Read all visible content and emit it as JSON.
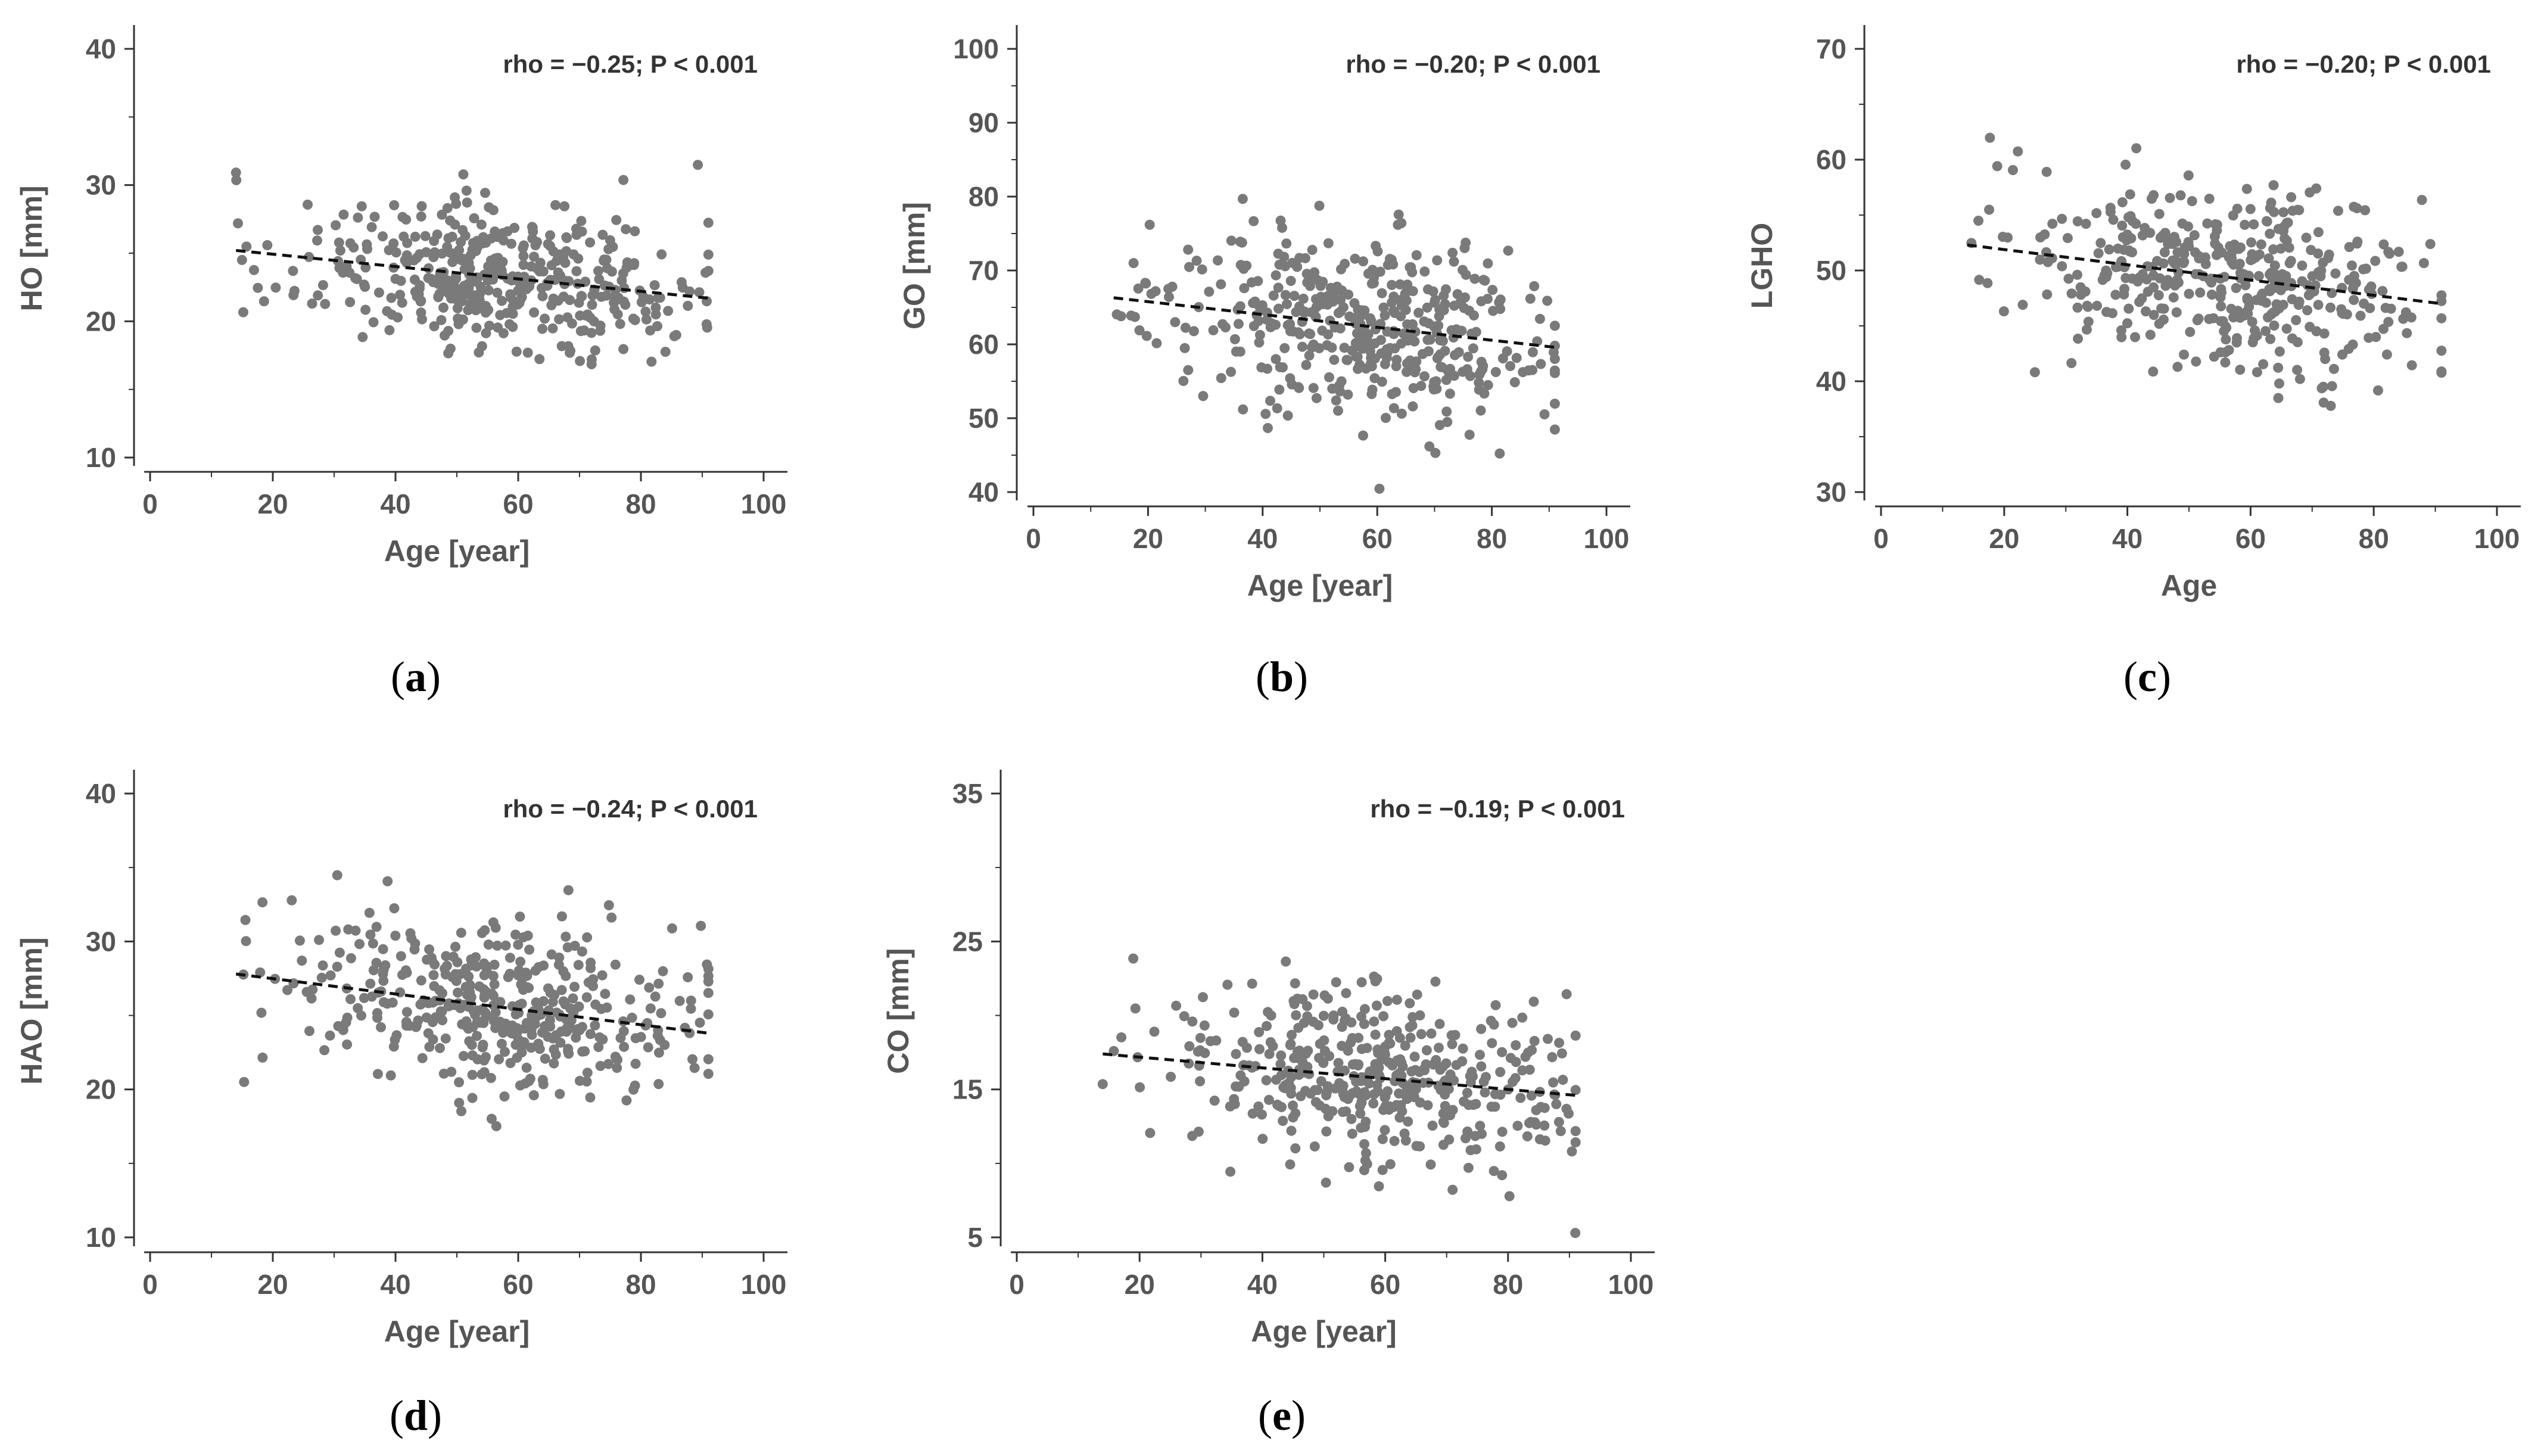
{
  "figure": {
    "description_labels": [
      "(a)",
      "(b)",
      "(c)",
      "(d)",
      "(e)"
    ]
  },
  "colors": {
    "point": "#7a7a7a",
    "trend": "#111111",
    "axis": "#333333",
    "text": "#555555"
  },
  "chart_data": [
    {
      "id": "a",
      "type": "scatter",
      "panel_label": "a",
      "xlabel": "Age [year]",
      "ylabel": "HO [mm]",
      "annotation": "rho = −0.25; P < 0.001",
      "xlim": [
        0,
        100
      ],
      "ylim": [
        10,
        40
      ],
      "xticks": [
        "0",
        "20",
        "40",
        "60",
        "80",
        "100"
      ],
      "yticks": [
        "10",
        "20",
        "30",
        "40"
      ],
      "data_center": 23.0,
      "data_spread": 2.6,
      "n_points": 430,
      "seed": 11,
      "trend": {
        "x": [
          14,
          91
        ],
        "y": [
          25.2,
          21.7
        ]
      }
    },
    {
      "id": "b",
      "type": "scatter",
      "panel_label": "b",
      "xlabel": "Age [year]",
      "ylabel": "GO [mm]",
      "annotation": "rho = −0.20; P < 0.001",
      "xlim": [
        0,
        100
      ],
      "ylim": [
        40,
        100
      ],
      "xticks": [
        "0",
        "20",
        "40",
        "60",
        "80",
        "100"
      ],
      "yticks": [
        "40",
        "50",
        "60",
        "70",
        "80",
        "90",
        "100"
      ],
      "data_center": 62.5,
      "data_spread": 6.0,
      "n_points": 430,
      "seed": 23,
      "trend": {
        "x": [
          14,
          91
        ],
        "y": [
          66.3,
          59.6
        ]
      }
    },
    {
      "id": "c",
      "type": "scatter",
      "panel_label": "c",
      "xlabel": "Age",
      "ylabel": "LGHO",
      "annotation": "rho = −0.20; P < 0.001",
      "xlim": [
        0,
        100
      ],
      "ylim": [
        30,
        70
      ],
      "xticks": [
        "0",
        "20",
        "40",
        "60",
        "80",
        "100"
      ],
      "yticks": [
        "30",
        "40",
        "50",
        "60",
        "70"
      ],
      "data_center": 49.0,
      "data_spread": 4.3,
      "n_points": 430,
      "seed": 37,
      "trend": {
        "x": [
          14,
          91
        ],
        "y": [
          52.3,
          47.0
        ]
      }
    },
    {
      "id": "d",
      "type": "scatter",
      "panel_label": "d",
      "xlabel": "Age [year]",
      "ylabel": "HAO [mm]",
      "annotation": "rho = −0.24; P < 0.001",
      "xlim": [
        0,
        100
      ],
      "ylim": [
        10,
        40
      ],
      "xticks": [
        "0",
        "20",
        "40",
        "60",
        "80",
        "100"
      ],
      "yticks": [
        "10",
        "20",
        "30",
        "40"
      ],
      "data_center": 25.0,
      "data_spread": 3.1,
      "n_points": 430,
      "seed": 53,
      "trend": {
        "x": [
          14,
          91
        ],
        "y": [
          27.8,
          23.8
        ]
      }
    },
    {
      "id": "e",
      "type": "scatter",
      "panel_label": "e",
      "xlabel": "Age [year]",
      "ylabel": "CO [mm]",
      "annotation": "rho = −0.19; P < 0.001",
      "xlim": [
        0,
        100
      ],
      "ylim": [
        5,
        35
      ],
      "xticks": [
        "0",
        "20",
        "40",
        "60",
        "80",
        "100"
      ],
      "yticks": [
        "5",
        "15",
        "25",
        "35"
      ],
      "data_center": 15.8,
      "data_spread": 2.9,
      "n_points": 430,
      "seed": 71,
      "trend": {
        "x": [
          14,
          91
        ],
        "y": [
          17.4,
          14.6
        ]
      }
    }
  ]
}
